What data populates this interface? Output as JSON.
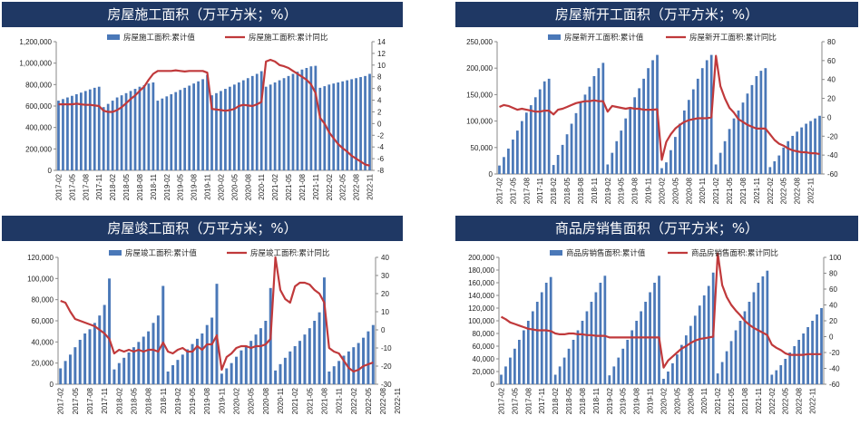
{
  "colors": {
    "bar": "#4a78b8",
    "line": "#c0393b",
    "title_bg": "#1f3864",
    "title_text": "#ffffff"
  },
  "chart_data": [
    {
      "type": "bar",
      "title": "房屋施工面积（万平方米；%）",
      "legend": [
        "房屋施工面积:累计值",
        "房屋施工面积:累计同比"
      ],
      "legend_placement": "top",
      "x_tick_labels": [
        "2017-02",
        "2017-05",
        "2017-08",
        "2017-11",
        "2018-02",
        "2018-05",
        "2018-08",
        "2018-11",
        "2019-02",
        "2019-05",
        "2019-08",
        "2019-11",
        "2020-02",
        "2020-05",
        "2020-08",
        "2020-11",
        "2021-02",
        "2021-05",
        "2021-08",
        "2021-11",
        "2022-02",
        "2022-05",
        "2022-08",
        "2022-11"
      ],
      "y_left": {
        "min": 0,
        "max": 1200000,
        "step": 200000,
        "ticks": [
          "0",
          "200,000",
          "400,000",
          "600,000",
          "800,000",
          "1,000,000",
          "1,200,000"
        ]
      },
      "y_right": {
        "min": -8,
        "max": 14,
        "step": 2,
        "ticks": [
          "-8",
          "-6",
          "-4",
          "-2",
          "0",
          "2",
          "4",
          "6",
          "8",
          "10",
          "12",
          "14"
        ]
      },
      "series": [
        {
          "name": "房屋施工面积:累计值",
          "type": "bar",
          "axis": "left",
          "values": [
            650000,
            665000,
            680000,
            695000,
            710000,
            725000,
            740000,
            755000,
            770000,
            780000,
            590000,
            620000,
            650000,
            680000,
            700000,
            720000,
            740000,
            760000,
            780000,
            795000,
            810000,
            820000,
            650000,
            670000,
            690000,
            710000,
            730000,
            750000,
            770000,
            790000,
            810000,
            830000,
            850000,
            890000,
            700000,
            720000,
            740000,
            760000,
            780000,
            800000,
            820000,
            840000,
            860000,
            880000,
            900000,
            925000,
            780000,
            800000,
            820000,
            840000,
            860000,
            880000,
            900000,
            920000,
            940000,
            955000,
            970000,
            975000,
            770000,
            785000,
            800000,
            810000,
            820000,
            830000,
            840000,
            850000,
            860000,
            870000,
            880000,
            900000
          ]
        },
        {
          "name": "房屋施工面积:累计同比",
          "type": "line",
          "axis": "right",
          "values": [
            3.3,
            3.3,
            3.3,
            3.3,
            3.4,
            3.3,
            3.2,
            3.2,
            3.1,
            3.0,
            2.2,
            2.0,
            2.0,
            2.3,
            2.8,
            3.5,
            4.2,
            4.8,
            5.6,
            6.3,
            7.5,
            8.5,
            9.0,
            9.0,
            9.0,
            9.0,
            9.1,
            9.0,
            8.9,
            9.0,
            9.0,
            9.0,
            9.0,
            8.7,
            2.5,
            2.4,
            2.3,
            2.2,
            2.3,
            2.5,
            3.0,
            3.2,
            3.1,
            3.0,
            3.3,
            3.7,
            10.6,
            10.9,
            10.6,
            10.0,
            9.8,
            9.5,
            9.0,
            8.5,
            8.0,
            7.5,
            6.7,
            5.2,
            1.0,
            0.0,
            -1.5,
            -2.5,
            -3.5,
            -4.2,
            -4.8,
            -5.5,
            -6.0,
            -6.5,
            -7.0,
            -7.2
          ]
        }
      ]
    },
    {
      "type": "bar",
      "title": "房屋新开工面积（万平方米；%）",
      "legend": [
        "房屋新开工面积:累计值",
        "房屋新开工面积:累计同比"
      ],
      "legend_placement": "top",
      "x_tick_labels": [
        "2017-02",
        "2017-05",
        "2017-08",
        "2017-11",
        "2018-02",
        "2018-05",
        "2018-08",
        "2018-11",
        "2019-02",
        "2019-05",
        "2019-08",
        "2019-11",
        "2020-02",
        "2020-05",
        "2020-08",
        "2020-11",
        "2021-02",
        "2021-05",
        "2021-08",
        "2021-11",
        "2022-02",
        "2022-05",
        "2022-08",
        "2022-11"
      ],
      "y_left": {
        "min": 0,
        "max": 250000,
        "step": 50000,
        "ticks": [
          "0",
          "50,000",
          "100,000",
          "150,000",
          "200,000",
          "250,000"
        ]
      },
      "y_right": {
        "min": -60,
        "max": 80,
        "step": 20,
        "ticks": [
          "-60",
          "-40",
          "-20",
          "0",
          "20",
          "40",
          "60",
          "80"
        ]
      },
      "series": [
        {
          "name": "房屋新开工面积:累计值",
          "type": "bar",
          "axis": "left",
          "values": [
            16000,
            32000,
            48000,
            65000,
            82000,
            100000,
            116000,
            130000,
            145000,
            160000,
            175000,
            180000,
            17000,
            36000,
            55000,
            75000,
            95000,
            115000,
            135000,
            150000,
            165000,
            185000,
            200000,
            210000,
            18000,
            40000,
            62000,
            82000,
            105000,
            125000,
            145000,
            162000,
            180000,
            200000,
            215000,
            225000,
            11000,
            22000,
            45000,
            70000,
            95000,
            120000,
            140000,
            160000,
            180000,
            200000,
            215000,
            225000,
            18000,
            40000,
            62000,
            85000,
            105000,
            120000,
            135000,
            152000,
            168000,
            185000,
            195000,
            200000,
            13000,
            24000,
            35000,
            50000,
            62000,
            72000,
            80000,
            88000,
            95000,
            100000,
            105000,
            110000
          ]
        },
        {
          "name": "房屋新开工面积:累计同比",
          "type": "line",
          "axis": "right",
          "values": [
            11,
            13,
            12,
            10,
            8,
            9,
            8,
            7,
            6,
            6,
            7,
            7,
            3,
            8,
            9,
            11,
            13,
            15,
            16,
            17,
            17,
            18,
            17,
            17,
            6,
            12,
            11,
            10,
            9,
            10,
            9,
            9,
            8,
            8,
            8,
            8.5,
            -45,
            -26,
            -18,
            -12,
            -8,
            -5,
            -3,
            -2,
            -1,
            -1,
            -1,
            0,
            65,
            33,
            20,
            10,
            5,
            -2,
            -5,
            -8,
            -10,
            -12,
            -12,
            -12,
            -18,
            -24,
            -28,
            -30,
            -33,
            -35,
            -36,
            -37,
            -37,
            -38,
            -38,
            -39
          ]
        }
      ]
    },
    {
      "type": "bar",
      "title": "房屋竣工面积（万平方米；%）",
      "legend": [
        "房屋竣工面积:累计值",
        "房屋竣工面积:累计同比"
      ],
      "legend_placement": "top",
      "x_tick_labels": [
        "2017-02",
        "2017-05",
        "2017-08",
        "2017-11",
        "2018-02",
        "2018-05",
        "2018-08",
        "2018-11",
        "2019-02",
        "2019-05",
        "2019-08",
        "2019-11",
        "2020-02",
        "2020-05",
        "2020-08",
        "2020-11",
        "2021-02",
        "2021-05",
        "2021-08",
        "2021-11",
        "2022-02",
        "2022-05",
        "2022-08",
        "2022-11"
      ],
      "y_left": {
        "min": 0,
        "max": 120000,
        "step": 20000,
        "ticks": [
          "0",
          "20,000",
          "40,000",
          "60,000",
          "80,000",
          "100,000",
          "120,000"
        ]
      },
      "y_right": {
        "min": -30,
        "max": 40,
        "step": 10,
        "ticks": [
          "-30",
          "-20",
          "-10",
          "0",
          "10",
          "20",
          "30",
          "40"
        ]
      },
      "series": [
        {
          "name": "房屋竣工面积:累计值",
          "type": "bar",
          "axis": "left",
          "values": [
            15000,
            22000,
            28000,
            35000,
            42000,
            48000,
            52000,
            58000,
            65000,
            75000,
            100000,
            14000,
            20000,
            25000,
            30000,
            35000,
            40000,
            45000,
            50000,
            58000,
            65000,
            93000,
            12000,
            18000,
            23000,
            28000,
            33000,
            38000,
            43000,
            48000,
            56000,
            63000,
            95000,
            10000,
            15000,
            20000,
            26000,
            32000,
            36000,
            41000,
            47000,
            53000,
            60000,
            91000,
            13000,
            19000,
            25000,
            31000,
            36000,
            41000,
            47000,
            53000,
            60000,
            68000,
            101000,
            12000,
            17000,
            22000,
            27000,
            31000,
            35000,
            39000,
            44000,
            50000,
            56000
          ]
        },
        {
          "name": "房屋竣工面积:累计同比",
          "type": "line",
          "axis": "right",
          "values": [
            16,
            15,
            10,
            6,
            5,
            4,
            3,
            2,
            0,
            -2,
            -5,
            -13,
            -11,
            -12,
            -11,
            -12,
            -11,
            -12,
            -11,
            -11,
            -12,
            -7,
            -12,
            -13,
            -11,
            -10,
            -12,
            -12,
            -9,
            -11,
            -8,
            -8,
            -3,
            -22,
            -15,
            -13,
            -10,
            -9,
            -9,
            -10,
            -9,
            -9,
            -8,
            -5,
            40,
            22,
            17,
            15,
            24,
            26,
            26,
            25,
            22,
            20,
            15,
            -10,
            -12,
            -13,
            -17,
            -21,
            -23,
            -22,
            -20,
            -19,
            -18
          ]
        }
      ]
    },
    {
      "type": "bar",
      "title": "商品房销售面积（万平方米；%）",
      "legend": [
        "商品房销售面积:累计值",
        "商品房销售面积:累计同比"
      ],
      "legend_placement": "top",
      "x_tick_labels": [
        "2017-02",
        "2017-05",
        "2017-08",
        "2017-11",
        "2018-02",
        "2018-05",
        "2018-08",
        "2018-11",
        "2019-02",
        "2019-05",
        "2019-08",
        "2019-11",
        "2020-02",
        "2020-05",
        "2020-08",
        "2020-11",
        "2021-02",
        "2021-05",
        "2021-08",
        "2021-11",
        "2022-02",
        "2022-05",
        "2022-08",
        "2022-11"
      ],
      "y_left": {
        "min": 0,
        "max": 200000,
        "step": 20000,
        "ticks": [
          "0",
          "20,000",
          "40,000",
          "60,000",
          "80,000",
          "100,000",
          "120,000",
          "140,000",
          "160,000",
          "180,000",
          "200,000"
        ]
      },
      "y_right": {
        "min": -60,
        "max": 100,
        "step": 20,
        "ticks": [
          "-60",
          "-40",
          "-20",
          "0",
          "20",
          "40",
          "60",
          "80",
          "100"
        ]
      },
      "series": [
        {
          "name": "商品房销售面积:累计值",
          "type": "bar",
          "axis": "left",
          "values": [
            15000,
            28000,
            42000,
            56000,
            70000,
            85000,
            100000,
            115000,
            130000,
            145000,
            160000,
            169000,
            15000,
            28000,
            42000,
            56000,
            70000,
            85000,
            100000,
            115000,
            130000,
            145000,
            160000,
            171000,
            14000,
            28000,
            42000,
            56000,
            70000,
            85000,
            100000,
            115000,
            130000,
            145000,
            160000,
            171000,
            8500,
            20000,
            33000,
            47000,
            62000,
            77000,
            92000,
            108000,
            124000,
            140000,
            155000,
            176000,
            17000,
            35000,
            52000,
            68000,
            85000,
            100000,
            115000,
            130000,
            145000,
            160000,
            170000,
            179000,
            15000,
            22000,
            30000,
            40000,
            50000,
            60000,
            70000,
            80000,
            90000,
            100000,
            110000,
            120000
          ]
        },
        {
          "name": "商品房销售面积:累计同比",
          "type": "line",
          "axis": "right",
          "values": [
            25,
            22,
            18,
            16,
            14,
            12,
            10,
            9,
            8,
            8,
            8,
            7,
            4,
            3,
            3,
            4,
            4,
            3,
            3,
            2,
            2,
            1,
            1,
            1,
            -1,
            -1,
            -1,
            -1,
            -1,
            -1,
            -1,
            -1,
            -1,
            -1,
            -1,
            -1,
            -39,
            -30,
            -25,
            -20,
            -15,
            -12,
            -8,
            -5,
            -3,
            -2,
            -1,
            0,
            105,
            65,
            50,
            40,
            33,
            27,
            20,
            15,
            11,
            8,
            5,
            2,
            -10,
            -14,
            -17,
            -21,
            -23,
            -23,
            -23,
            -23,
            -22,
            -22,
            -22,
            -22
          ]
        }
      ]
    }
  ]
}
